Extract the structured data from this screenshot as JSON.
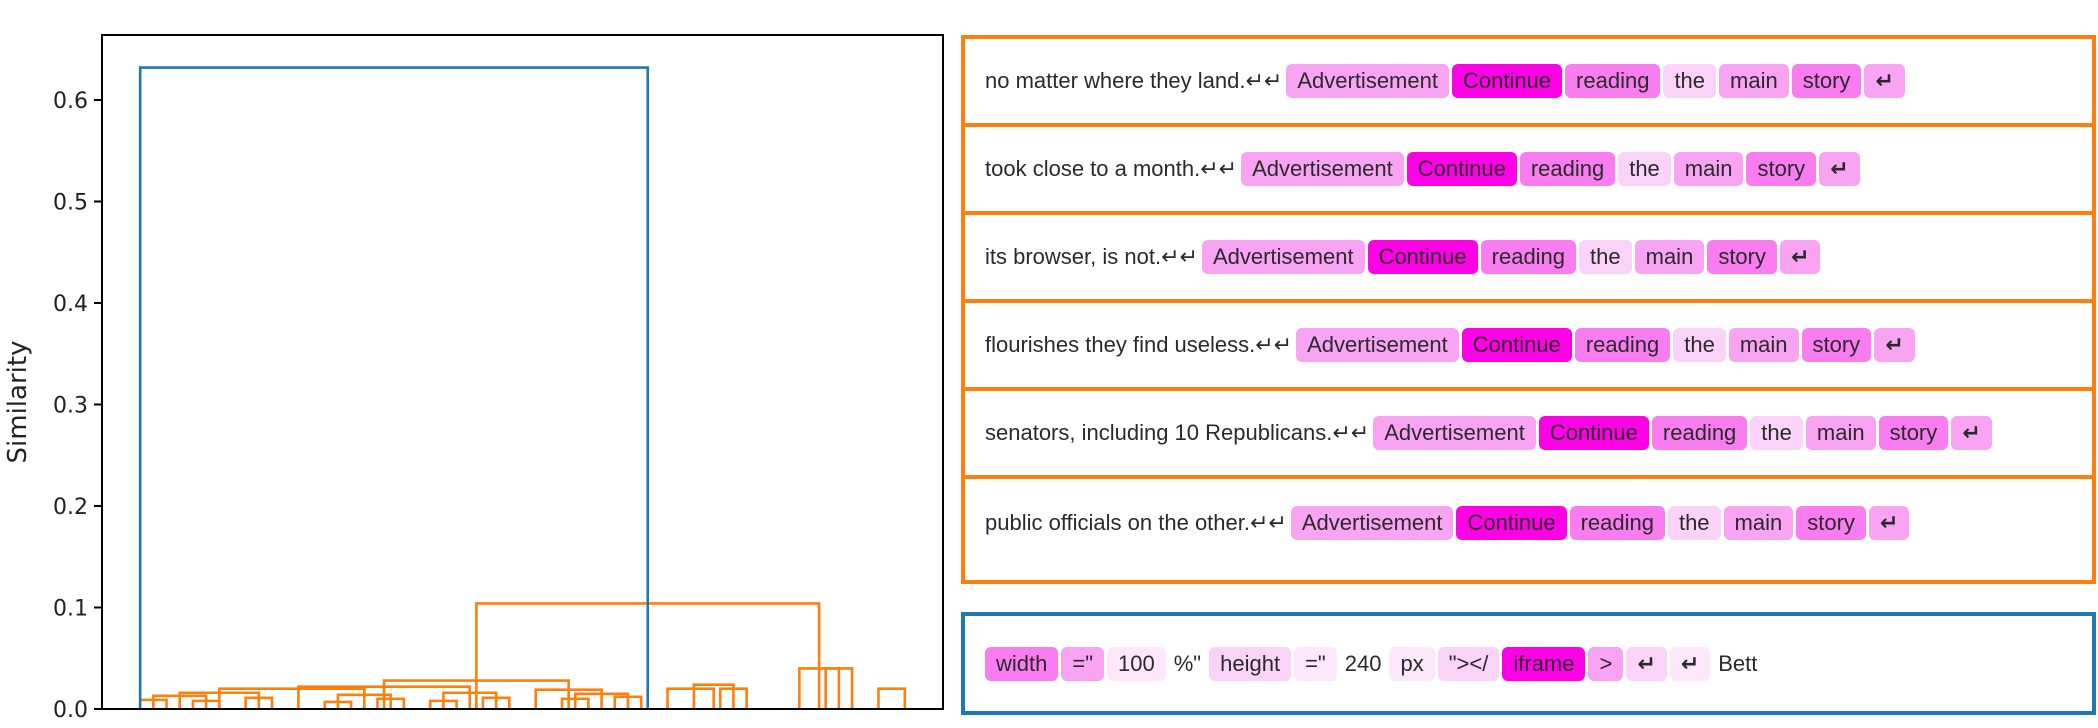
{
  "chart_data": {
    "type": "dendrogram",
    "ylabel": "Similarity",
    "ylim": [
      0,
      0.65
    ],
    "yticks": [
      "0.0",
      "0.1",
      "0.2",
      "0.3",
      "0.4",
      "0.5",
      "0.6"
    ],
    "ytick_values": [
      0.0,
      0.1,
      0.2,
      0.3,
      0.4,
      0.5,
      0.6
    ],
    "leaf_count": 30,
    "colors": {
      "main_cluster": "#ff7f0e",
      "root": "#1f77b4"
    },
    "links": [
      {
        "l": 5,
        "r": 15,
        "h": 0.009,
        "c": "#ff7f0e"
      },
      {
        "l": 25,
        "r": 35,
        "h": 0.008,
        "c": "#ff7f0e"
      },
      {
        "l": 45,
        "r": 55,
        "h": 0.011,
        "c": "#ff7f0e"
      },
      {
        "l": 75,
        "r": 85,
        "h": 0.007,
        "c": "#ff7f0e"
      },
      {
        "l": 95,
        "r": 105,
        "h": 0.01,
        "c": "#ff7f0e"
      },
      {
        "l": 115,
        "r": 125,
        "h": 0.008,
        "c": "#ff7f0e"
      },
      {
        "l": 135,
        "r": 145,
        "h": 0.011,
        "c": "#ff7f0e"
      },
      {
        "l": 165,
        "r": 175,
        "h": 0.01,
        "c": "#ff7f0e"
      },
      {
        "l": 185,
        "r": 195,
        "h": 0.012,
        "c": "#ff7f0e"
      },
      {
        "l": 225,
        "r": 235,
        "h": 0.02,
        "c": "#ff7f0e"
      },
      {
        "l": 285,
        "r": 295,
        "h": 0.02,
        "c": "#ff7f0e"
      },
      {
        "l": 10,
        "r": 30,
        "h": 0.013,
        "c": "#ff7f0e"
      },
      {
        "l": 20,
        "r": 50,
        "h": 0.016,
        "c": "#ff7f0e"
      },
      {
        "l": 80,
        "r": 100,
        "h": 0.014,
        "c": "#ff7f0e"
      },
      {
        "l": 35,
        "r": 90,
        "h": 0.02,
        "c": "#ff7f0e"
      },
      {
        "l": 120,
        "r": 140,
        "h": 0.016,
        "c": "#ff7f0e"
      },
      {
        "l": 65,
        "r": 130,
        "h": 0.022,
        "c": "#ff7f0e"
      },
      {
        "l": 170,
        "r": 190,
        "h": 0.015,
        "c": "#ff7f0e"
      },
      {
        "l": 155,
        "r": 180,
        "h": 0.019,
        "c": "#ff7f0e"
      },
      {
        "l": 97.5,
        "r": 167.5,
        "h": 0.028,
        "c": "#ff7f0e"
      },
      {
        "l": 215,
        "r": 230,
        "h": 0.024,
        "c": "#ff7f0e"
      },
      {
        "l": 205,
        "r": 222.5,
        "h": 0.02,
        "c": "#ff7f0e"
      },
      {
        "l": 265,
        "r": 275,
        "h": 0.04,
        "c": "#ff7f0e"
      },
      {
        "l": 255,
        "r": 270,
        "h": 0.04,
        "c": "#ff7f0e"
      },
      {
        "l": 132.5,
        "r": 262.5,
        "h": 0.104,
        "c": "#ff7f0e"
      },
      {
        "l": 5,
        "r": 197.5,
        "h": 0.632,
        "c": "#1f77b4"
      }
    ]
  },
  "orange_rows": [
    {
      "prefix": "no matter where they land.↵↵",
      "tokens": [
        {
          "text": "Advertisement",
          "level": 3
        },
        {
          "text": "Continue",
          "level": 1
        },
        {
          "text": "reading",
          "level": 2
        },
        {
          "text": "the",
          "level": 4
        },
        {
          "text": "main",
          "level": 3
        },
        {
          "text": "story",
          "level": 2
        },
        {
          "text": "↵",
          "level": 3
        }
      ]
    },
    {
      "prefix": "took close to a month.↵↵",
      "tokens": [
        {
          "text": "Advertisement",
          "level": 3
        },
        {
          "text": "Continue",
          "level": 1
        },
        {
          "text": "reading",
          "level": 2
        },
        {
          "text": "the",
          "level": 4
        },
        {
          "text": "main",
          "level": 3
        },
        {
          "text": "story",
          "level": 2
        },
        {
          "text": "↵",
          "level": 3
        }
      ]
    },
    {
      "prefix": "its browser, is not.↵↵",
      "tokens": [
        {
          "text": "Advertisement",
          "level": 3
        },
        {
          "text": "Continue",
          "level": 1
        },
        {
          "text": "reading",
          "level": 2
        },
        {
          "text": "the",
          "level": 4
        },
        {
          "text": "main",
          "level": 3
        },
        {
          "text": "story",
          "level": 2
        },
        {
          "text": "↵",
          "level": 3
        }
      ]
    },
    {
      "prefix": "flourishes they find useless.↵↵",
      "tokens": [
        {
          "text": "Advertisement",
          "level": 3
        },
        {
          "text": "Continue",
          "level": 1
        },
        {
          "text": "reading",
          "level": 2
        },
        {
          "text": "the",
          "level": 4
        },
        {
          "text": "main",
          "level": 3
        },
        {
          "text": "story",
          "level": 2
        },
        {
          "text": "↵",
          "level": 3
        }
      ]
    },
    {
      "prefix": "senators, including 10 Republicans.↵↵",
      "tokens": [
        {
          "text": "Advertisement",
          "level": 3
        },
        {
          "text": "Continue",
          "level": 1
        },
        {
          "text": "reading",
          "level": 2
        },
        {
          "text": "the",
          "level": 4
        },
        {
          "text": "main",
          "level": 3
        },
        {
          "text": "story",
          "level": 2
        },
        {
          "text": "↵",
          "level": 3
        }
      ]
    },
    {
      "prefix": "public officials on the other.↵↵",
      "tokens": [
        {
          "text": "Advertisement",
          "level": 3
        },
        {
          "text": "Continue",
          "level": 1
        },
        {
          "text": "reading",
          "level": 2
        },
        {
          "text": "the",
          "level": 4
        },
        {
          "text": "main",
          "level": 3
        },
        {
          "text": "story",
          "level": 2
        },
        {
          "text": "↵",
          "level": 3
        }
      ]
    }
  ],
  "blue_row": {
    "tokens": [
      {
        "text": "width",
        "level": 2
      },
      {
        "text": "=\"",
        "level": 3
      },
      {
        "text": "100",
        "level": 5
      },
      {
        "text": "%\"",
        "level": 0
      },
      {
        "text": "height",
        "level": 4
      },
      {
        "text": "=\"",
        "level": 5
      },
      {
        "text": "240",
        "level": 0
      },
      {
        "text": "px",
        "level": 5
      },
      {
        "text": "\"></",
        "level": 4
      },
      {
        "text": "iframe",
        "level": 1
      },
      {
        "text": ">",
        "level": 3
      },
      {
        "text": "↵",
        "level": 4
      },
      {
        "text": "↵",
        "level": 5
      },
      {
        "text": "Bett",
        "level": 0
      }
    ]
  }
}
